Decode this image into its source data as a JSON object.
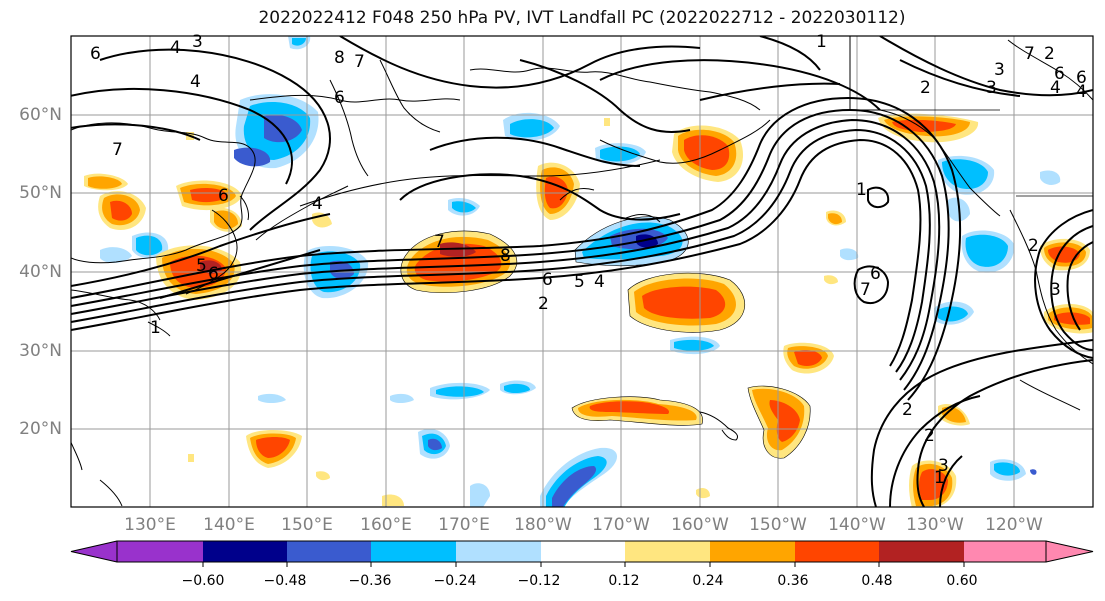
{
  "title": "2022022412 F048 250 hPa PV, IVT Landfall PC (2022022712 - 2022030112)",
  "lat_labels": [
    "60°N",
    "50°N",
    "40°N",
    "30°N",
    "20°N"
  ],
  "lon_labels": [
    "130°E",
    "140°E",
    "150°E",
    "160°E",
    "170°E",
    "180°W",
    "170°W",
    "160°W",
    "150°W",
    "140°W",
    "130°W",
    "120°W"
  ],
  "colorbar": {
    "ticks": [
      "−0.60",
      "−0.48",
      "−0.36",
      "−0.24",
      "−0.12",
      "0.12",
      "0.24",
      "0.36",
      "0.48",
      "0.60"
    ],
    "colors": [
      "#9932cc",
      "#00008b",
      "#3a5bcf",
      "#00bfff",
      "#b0e0ff",
      "#ffffff",
      "#ffe680",
      "#ffa500",
      "#ff4500",
      "#b22222",
      "#ff88b0"
    ]
  },
  "contour_labels": [
    "3",
    "6",
    "4",
    "8",
    "7",
    "6",
    "1",
    "2",
    "3",
    "6",
    "4",
    "7",
    "4",
    "4",
    "2",
    "7",
    "6",
    "5",
    "6",
    "8",
    "6",
    "5",
    "4",
    "7",
    "1",
    "2",
    "2",
    "6",
    "7",
    "3",
    "2",
    "2",
    "3",
    "1",
    "1",
    "6",
    "4",
    "3"
  ]
}
